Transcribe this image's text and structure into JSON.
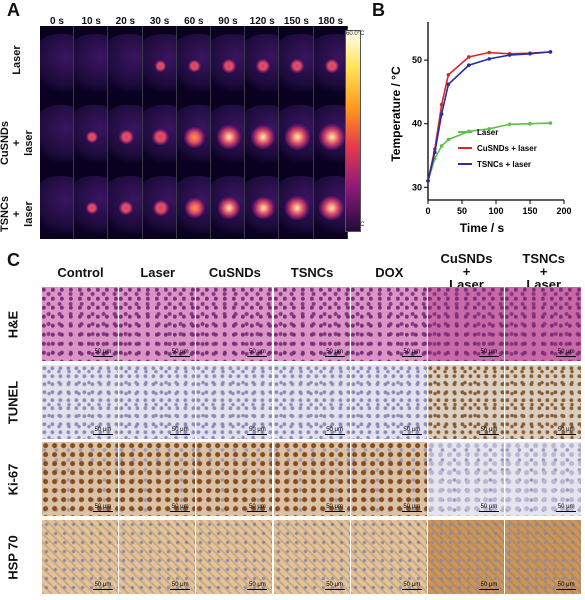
{
  "panels": {
    "a": "A",
    "b": "B",
    "c": "C"
  },
  "panel_a": {
    "times": [
      "0 s",
      "10 s",
      "20 s",
      "30 s",
      "60 s",
      "90 s",
      "120 s",
      "150 s",
      "180 s"
    ],
    "rows": [
      "Laser",
      "CuSNDs\n+\nlaser",
      "TSNCs\n+\nlaser"
    ],
    "scale_max": "60.0°C",
    "scale_min": "25.0°C"
  },
  "chart_data": {
    "type": "line",
    "title": "",
    "xlabel": "Time / s",
    "ylabel": "Temperature / °C",
    "xlim": [
      0,
      200
    ],
    "ylim": [
      28,
      56
    ],
    "xticks": [
      0,
      50,
      100,
      150,
      200
    ],
    "yticks": [
      30,
      40,
      50
    ],
    "legend_position": "right",
    "series": [
      {
        "name": "Laser",
        "color": "#5dc24a",
        "x": [
          0,
          10,
          20,
          30,
          60,
          90,
          120,
          150,
          180
        ],
        "y": [
          31,
          34.5,
          36.5,
          37.5,
          38.8,
          39.2,
          39.9,
          40.0,
          40.1
        ]
      },
      {
        "name": "CuSNDs + laser",
        "color": "#d22a2a",
        "x": [
          0,
          10,
          20,
          30,
          60,
          90,
          120,
          150,
          180
        ],
        "y": [
          31,
          36,
          43,
          47.7,
          50.5,
          51.2,
          51.0,
          51.1,
          51.3
        ]
      },
      {
        "name": "TSNCs + laser",
        "color": "#2b2ba5",
        "x": [
          0,
          10,
          20,
          30,
          60,
          90,
          120,
          150,
          180
        ],
        "y": [
          31,
          35.5,
          41.5,
          46.2,
          49.2,
          50.2,
          50.8,
          51.0,
          51.3
        ]
      }
    ]
  },
  "panel_c": {
    "columns": [
      "Control",
      "Laser",
      "CuSNDs",
      "TSNCs",
      "DOX",
      "CuSNDs\n+\nLaser",
      "TSNCs\n+\nLaser"
    ],
    "stains": [
      "H&E",
      "TUNEL",
      "Ki-67",
      "HSP 70"
    ],
    "scale": "50 μm",
    "scale_alt": "50 pm",
    "colors": {
      "he": "#d98fc0",
      "tunel": "#dcdbe8",
      "ki67": "#c9a884",
      "hsp70": "#e3c39a"
    }
  }
}
